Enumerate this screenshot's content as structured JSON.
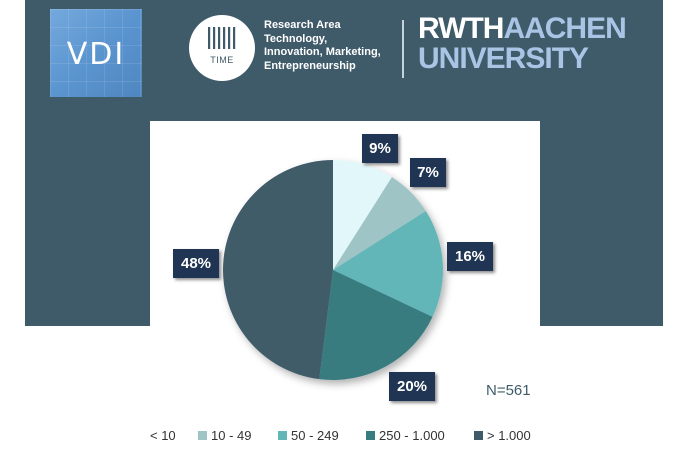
{
  "header": {
    "vdi_logo_text": "VDI",
    "time_logo_word": "TIME",
    "time_text_lines": [
      "Research Area",
      "Technology,",
      "Innovation, Marketing,",
      "Entrepreneurship"
    ],
    "rwth_line1_part1": "RWTH",
    "rwth_line1_part2": "AACHEN",
    "rwth_line2": "UNIVERSITY"
  },
  "colors": {
    "banner": "#3f5b69",
    "label_box": "#1f3553"
  },
  "chart_data": {
    "type": "pie",
    "categories": [
      "< 10",
      "10 - 49",
      "50 - 249",
      "250 - 1.000",
      "> 1.000"
    ],
    "values": [
      9,
      7,
      16,
      20,
      48
    ],
    "labels": [
      "9%",
      "7%",
      "16%",
      "20%",
      "48%"
    ],
    "colors": [
      "#e2f7fa",
      "#9fc4c6",
      "#63b6b8",
      "#377c80",
      "#3f5b69"
    ],
    "annotation": "N=561",
    "legend_position": "bottom"
  }
}
